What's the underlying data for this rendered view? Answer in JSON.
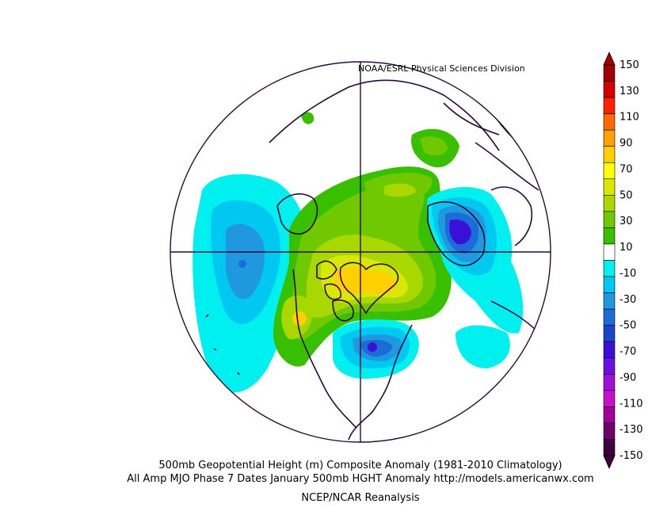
{
  "credit": "NOAA/ESRL Physical Sciences Division",
  "captions": {
    "line1": "500mb Geopotential Height (m) Composite Anomaly (1981-2010 Climatology)",
    "line2": "All Amp MJO Phase 7 Dates January 500mb HGHT Anomaly http://models.americanwx.com",
    "line3": "NCEP/NCAR Reanalysis"
  },
  "colorbar": {
    "tick_labels": [
      "150",
      "130",
      "110",
      "90",
      "70",
      "50",
      "30",
      "10",
      "-10",
      "-30",
      "-50",
      "-70",
      "-90",
      "-110",
      "-130",
      "-150"
    ],
    "colors": [
      "#a00000",
      "#d00000",
      "#ff2200",
      "#ff6a00",
      "#ffa000",
      "#ffd000",
      "#ffff00",
      "#d8e800",
      "#a8d800",
      "#70c800",
      "#38c000",
      "#ffffff",
      "#00f0f0",
      "#00c8f0",
      "#2098e0",
      "#1c6cd8",
      "#1c44c8",
      "#3a10d8",
      "#6a10e0",
      "#a010d8",
      "#c810c8",
      "#a00098",
      "#70006a",
      "#400040"
    ]
  },
  "map": {
    "projection": "north-polar-stereographic",
    "anomaly_centers": [
      {
        "region": "Greenland / Canadian Arctic",
        "sign": "positive",
        "peak_value": 70
      },
      {
        "region": "Alaska / Western Canada",
        "sign": "positive",
        "peak_value": 50
      },
      {
        "region": "Eastern North America",
        "sign": "negative",
        "peak_value": -70
      },
      {
        "region": "Scandinavia / Northern Europe",
        "sign": "negative",
        "peak_value": -90
      },
      {
        "region": "North Pacific",
        "sign": "negative",
        "peak_value": -50
      },
      {
        "region": "Siberia",
        "sign": "positive",
        "peak_value": 30
      }
    ]
  }
}
